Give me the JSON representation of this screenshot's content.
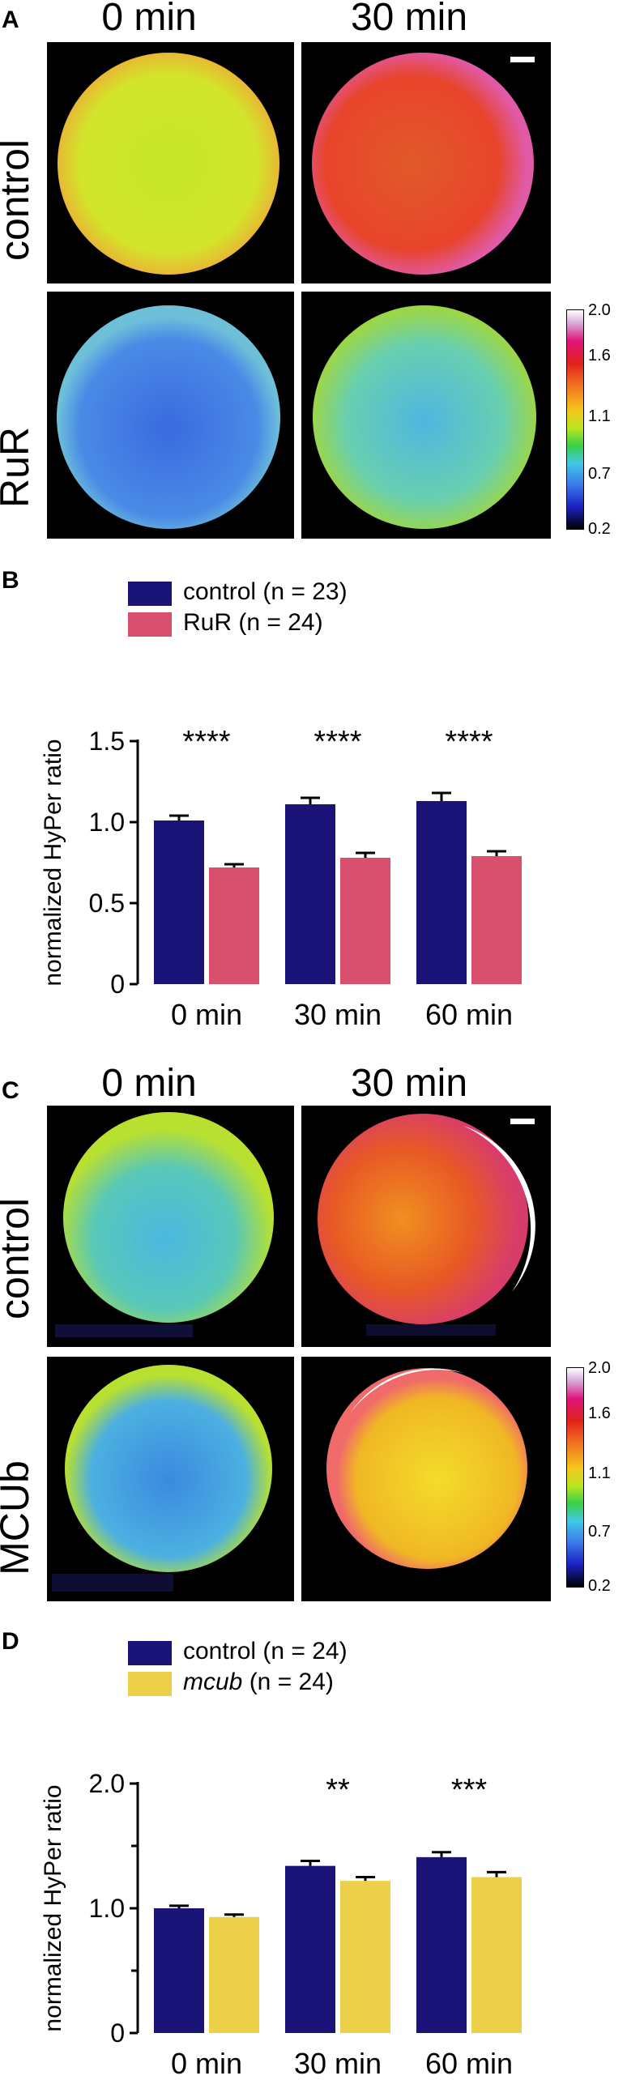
{
  "colors": {
    "control": "#1a1478",
    "rur": "#d94f6e",
    "mcub": "#ecd049",
    "background": "#ffffff"
  },
  "panel_a": {
    "letter": "A",
    "col_labels": [
      "0 min",
      "30 min"
    ],
    "row_labels": [
      "control",
      "RuR"
    ],
    "scale_ticks": [
      "2.0",
      "1.6",
      "1.1",
      "0.7",
      "0.2"
    ],
    "scale_bar": "scale-bar"
  },
  "panel_b": {
    "letter": "B",
    "legend": [
      "control (n = 23)",
      "RuR (n = 24)"
    ],
    "ylabel": "normalized HyPer ratio",
    "yticks": [
      "0",
      "0.5",
      "1.0",
      "1.5"
    ],
    "categories": [
      "0 min",
      "30 min",
      "60 min"
    ],
    "significance": [
      "****",
      "****",
      "****"
    ]
  },
  "panel_c": {
    "letter": "C",
    "col_labels": [
      "0 min",
      "30 min"
    ],
    "row_labels": [
      "control",
      "MCUb"
    ],
    "scale_ticks": [
      "2.0",
      "1.6",
      "1.1",
      "0.7",
      "0.2"
    ]
  },
  "panel_d": {
    "letter": "D",
    "legend_control": "control (n = 24)",
    "legend_mcub_italic": "mcub",
    "legend_mcub_rest": " (n = 24)",
    "ylabel": "normalized HyPer ratio",
    "yticks": [
      "0",
      "1.0",
      "2.0"
    ],
    "categories": [
      "0 min",
      "30 min",
      "60 min"
    ],
    "significance": [
      "",
      "**",
      "***"
    ]
  },
  "chart_data": [
    {
      "type": "bar",
      "panel": "B",
      "categories": [
        "0 min",
        "30 min",
        "60 min"
      ],
      "series": [
        {
          "name": "control (n = 23)",
          "values": [
            1.01,
            1.11,
            1.13
          ],
          "errors": [
            0.03,
            0.04,
            0.05
          ]
        },
        {
          "name": "RuR (n = 24)",
          "values": [
            0.72,
            0.78,
            0.79
          ],
          "errors": [
            0.02,
            0.03,
            0.03
          ]
        }
      ],
      "ylabel": "normalized HyPer ratio",
      "ylim": [
        0,
        1.5
      ],
      "yticks": [
        0,
        0.5,
        1.0,
        1.5
      ],
      "annotations": [
        "****",
        "****",
        "****"
      ]
    },
    {
      "type": "bar",
      "panel": "D",
      "categories": [
        "0 min",
        "30 min",
        "60 min"
      ],
      "series": [
        {
          "name": "control (n = 24)",
          "values": [
            1.0,
            1.34,
            1.41
          ],
          "errors": [
            0.02,
            0.04,
            0.04
          ]
        },
        {
          "name": "mcub (n = 24)",
          "values": [
            0.93,
            1.22,
            1.25
          ],
          "errors": [
            0.02,
            0.03,
            0.04
          ]
        }
      ],
      "ylabel": "normalized HyPer ratio",
      "ylim": [
        0,
        2.0
      ],
      "yticks": [
        0,
        1.0,
        2.0
      ],
      "annotations": [
        "",
        "**",
        "***"
      ]
    }
  ]
}
